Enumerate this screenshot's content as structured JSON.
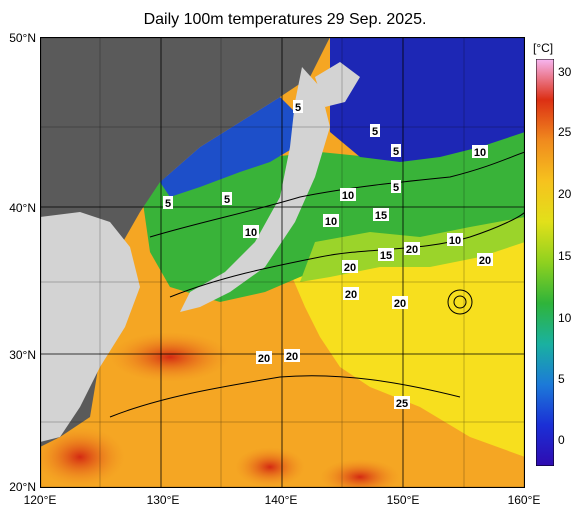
{
  "title": "Daily 100m temperatures 29 Sep. 2025.",
  "axes": {
    "lat_labels": [
      "50°N",
      "40°N",
      "30°N",
      "20°N"
    ],
    "lon_labels": [
      "120°E",
      "130°E",
      "140°E",
      "150°E",
      "160°E"
    ]
  },
  "colorbar": {
    "unit": "[°C]",
    "ticks": [
      "30",
      "25",
      "20",
      "15",
      "10",
      "5",
      "0"
    ],
    "range": [
      -2,
      32
    ]
  },
  "contour_labels": [
    {
      "text": "5"
    },
    {
      "text": "5"
    },
    {
      "text": "5"
    },
    {
      "text": "5"
    },
    {
      "text": "5"
    },
    {
      "text": "5"
    },
    {
      "text": "10"
    },
    {
      "text": "10"
    },
    {
      "text": "10"
    },
    {
      "text": "10"
    },
    {
      "text": "10"
    },
    {
      "text": "15"
    },
    {
      "text": "15"
    },
    {
      "text": "20"
    },
    {
      "text": "20"
    },
    {
      "text": "20"
    },
    {
      "text": "20"
    },
    {
      "text": "20"
    },
    {
      "text": "20"
    },
    {
      "text": "20"
    },
    {
      "text": "25"
    }
  ],
  "colors": {
    "land": "#d3d3d3",
    "nodata": "#5a5a5a",
    "cold": "#1f1fb0",
    "cool": "#1aa03a",
    "mid": "#d6e61a",
    "warm": "#f7c51e",
    "hot": "#e8501a"
  }
}
